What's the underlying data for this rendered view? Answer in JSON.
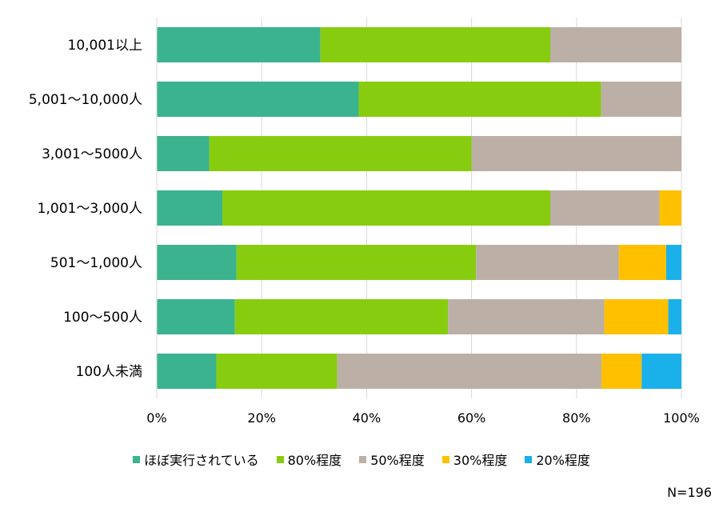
{
  "chart_data": {
    "type": "bar",
    "orientation": "horizontal",
    "stacked": true,
    "normalized": true,
    "categories": [
      "10,001以上",
      "5,001～10,000人",
      "3,001～5000人",
      "1,001～3,000人",
      "501～1,000人",
      "100～500人",
      "100人未満"
    ],
    "series": [
      {
        "name": "ほぼ実行されている",
        "color": "#3bb38f",
        "values": [
          31.2,
          38.5,
          10.0,
          12.5,
          15.2,
          14.9,
          11.4
        ]
      },
      {
        "name": "80%程度",
        "color": "#88cc10",
        "values": [
          43.8,
          46.2,
          50.0,
          62.5,
          45.6,
          40.6,
          23.1
        ]
      },
      {
        "name": "50%程度",
        "color": "#bbafa6",
        "values": [
          25.0,
          15.3,
          40.0,
          20.8,
          27.2,
          29.8,
          50.5
        ]
      },
      {
        "name": "30%程度",
        "color": "#ffc000",
        "values": [
          0,
          0,
          0,
          4.2,
          9.0,
          12.2,
          7.7
        ]
      },
      {
        "name": "20%程度",
        "color": "#1ab0ea",
        "values": [
          0,
          0,
          0,
          0,
          2.9,
          2.5,
          7.6
        ]
      }
    ],
    "xlim": [
      0,
      100
    ],
    "xticks": [
      "0%",
      "20%",
      "40%",
      "60%",
      "80%",
      "100%"
    ],
    "grid": "vertical",
    "legend_position": "bottom"
  },
  "note": "N=196"
}
